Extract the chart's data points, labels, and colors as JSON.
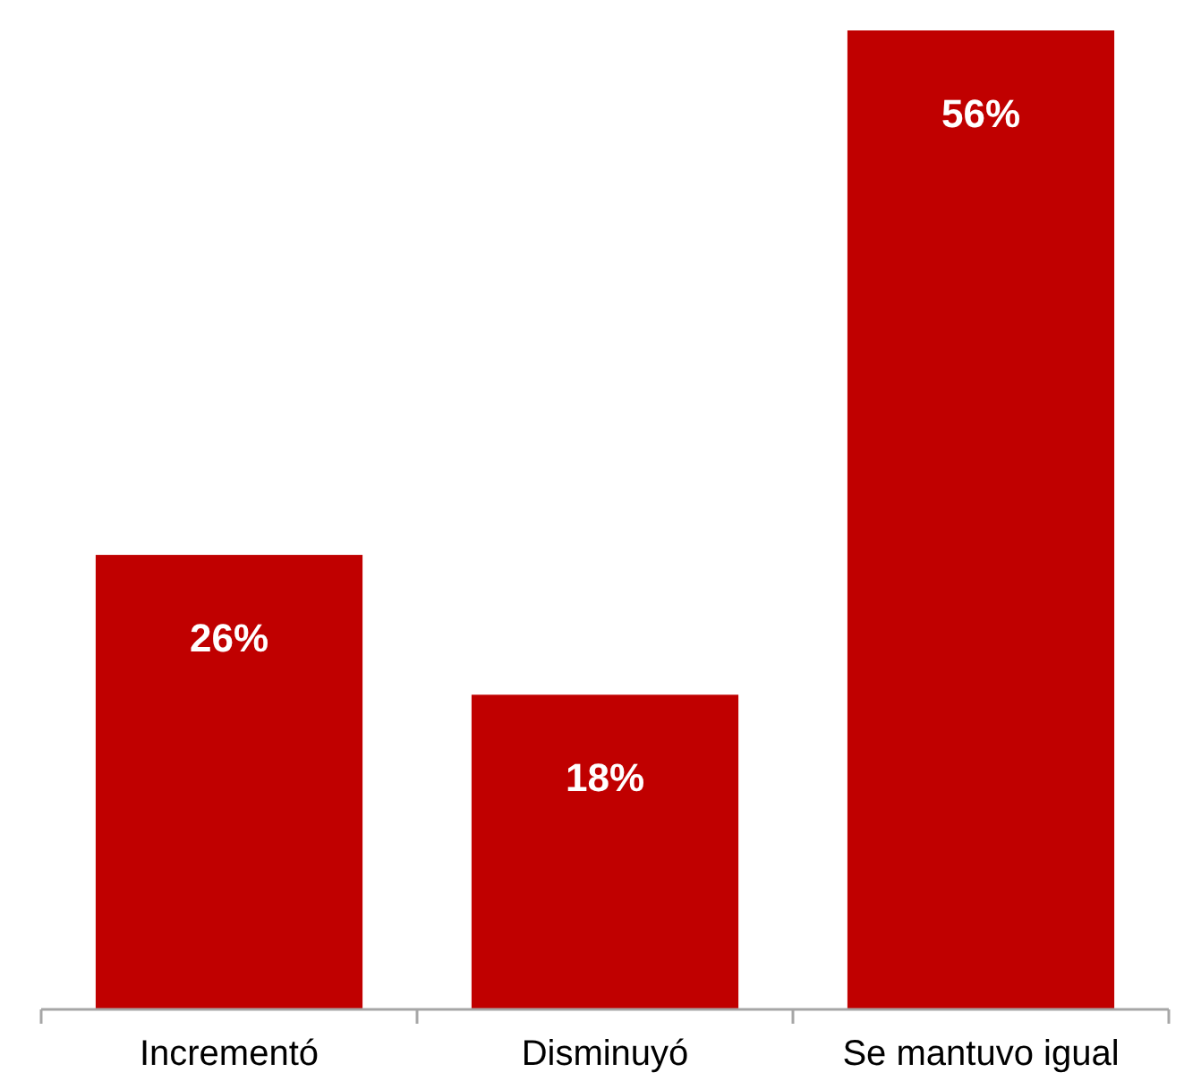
{
  "chart_data": {
    "type": "bar",
    "categories": [
      "Incrementó",
      "Disminuyó",
      "Se mantuvo igual"
    ],
    "values": [
      26,
      18,
      56
    ],
    "value_labels": [
      "26%",
      "18%",
      "56%"
    ],
    "color": "#c00000"
  }
}
